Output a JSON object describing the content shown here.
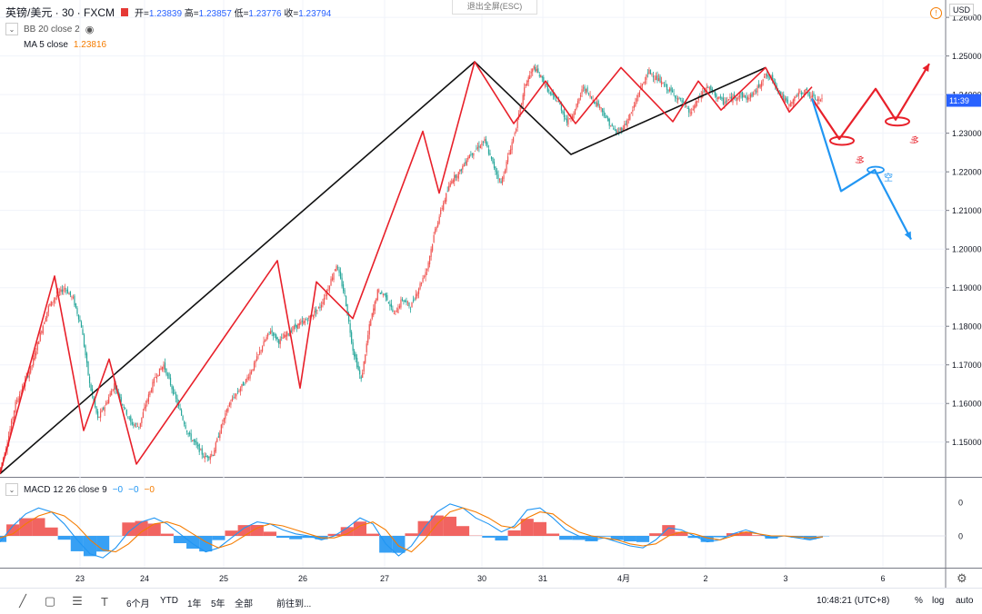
{
  "header": {
    "symbol": "英镑/美元 · 30 · FXCM",
    "open_label": "开=",
    "open": "1.23839",
    "high_label": "高=",
    "high": "1.23857",
    "low_label": "低=",
    "low": "1.23776",
    "close_label": "收=",
    "close": "1.23794",
    "indicator1": "BB 20 close 2",
    "indicator2_label": "MA 5 close",
    "indicator2_value": "1.23816",
    "exit_fullscreen": "退出全屏(ESC)",
    "currency": "USD",
    "macd_label": "MACD 12 26 close 9",
    "macd_v1": "−0",
    "macd_v2": "−0",
    "macd_v3": "−0"
  },
  "colors": {
    "up": "#ef5350",
    "down": "#26a69a",
    "price_line": "#2962ff",
    "zigzag_red": "#e8202a",
    "zigzag_black": "#111111",
    "bullish_arrow": "#e8202a",
    "bearish_arrow": "#2196f3",
    "macd_line": "#2196f3",
    "signal_line": "#f57c00",
    "hist_pos": "#ef5350",
    "hist_neg": "#2196f3"
  },
  "bottom_toolbar": {
    "timeframes": [
      "6个月",
      "YTD",
      "1年",
      "5年",
      "全部"
    ],
    "goto": "前往到...",
    "clock": "10:48:21 (UTC+8)",
    "percent": "%",
    "log": "log",
    "auto": "auto"
  },
  "chart_data": [
    {
      "type": "line",
      "series_style": "candlestick",
      "price_axis": {
        "ticks": [
          "1.26000",
          "1.25000",
          "1.24000",
          "1.23000",
          "1.22000",
          "1.21000",
          "1.20000",
          "1.19000",
          "1.18000",
          "1.17000",
          "1.16000",
          "1.15000"
        ],
        "ylim": [
          1.141,
          1.2645
        ]
      },
      "current_price_tag": "11:39",
      "time_axis": {
        "ticks": [
          "23",
          "24",
          "25",
          "26",
          "27",
          "30",
          "31",
          "4月",
          "2",
          "3",
          "6"
        ]
      },
      "price_path": {
        "description_x": "bar index 0..600",
        "x": [
          0,
          6,
          12,
          18,
          24,
          30,
          36,
          42,
          48,
          54,
          60,
          66,
          72,
          78,
          84,
          90,
          96,
          102,
          108,
          114,
          120,
          126,
          132,
          138,
          144,
          150,
          156,
          162,
          168,
          174,
          180,
          186,
          192,
          198,
          204,
          210,
          216,
          222,
          228,
          234,
          240,
          246,
          252,
          258,
          264,
          270,
          276,
          282,
          288,
          294,
          300,
          306,
          312,
          318,
          324,
          330,
          336,
          342,
          348,
          354,
          360,
          366,
          372,
          378,
          384,
          390,
          396,
          402,
          408,
          414,
          420,
          426,
          432,
          438,
          444,
          450,
          456,
          462,
          468,
          474,
          480,
          486,
          492,
          498,
          504,
          510,
          516,
          522,
          528,
          534,
          540,
          546,
          552,
          558,
          564,
          570,
          576,
          582,
          588,
          594,
          600
        ],
        "y": [
          1.142,
          1.15,
          1.16,
          1.165,
          1.17,
          1.178,
          1.185,
          1.188,
          1.19,
          1.187,
          1.18,
          1.165,
          1.156,
          1.16,
          1.165,
          1.16,
          1.155,
          1.154,
          1.161,
          1.167,
          1.17,
          1.164,
          1.158,
          1.152,
          1.149,
          1.146,
          1.147,
          1.154,
          1.16,
          1.163,
          1.166,
          1.17,
          1.175,
          1.179,
          1.176,
          1.178,
          1.18,
          1.181,
          1.183,
          1.185,
          1.19,
          1.196,
          1.188,
          1.174,
          1.166,
          1.18,
          1.189,
          1.188,
          1.183,
          1.187,
          1.185,
          1.19,
          1.195,
          1.205,
          1.212,
          1.218,
          1.22,
          1.224,
          1.226,
          1.228,
          1.222,
          1.217,
          1.225,
          1.233,
          1.243,
          1.247,
          1.244,
          1.24,
          1.238,
          1.233,
          1.236,
          1.242,
          1.239,
          1.237,
          1.233,
          1.23,
          1.232,
          1.236,
          1.242,
          1.246,
          1.244,
          1.242,
          1.24,
          1.238,
          1.235,
          1.239,
          1.242,
          1.24,
          1.238,
          1.239,
          1.24,
          1.239,
          1.241,
          1.245,
          1.244,
          1.24,
          1.237,
          1.24,
          1.241,
          1.239,
          1.2385
        ]
      },
      "zigzag_red": {
        "x": [
          0,
          60,
          92,
          120,
          150,
          305,
          330,
          348,
          388,
          465,
          483,
          522,
          565,
          600,
          633,
          683,
          740,
          768,
          793,
          842,
          868,
          893
        ],
        "y": [
          1.1418,
          1.193,
          1.153,
          1.1715,
          1.1443,
          1.197,
          1.164,
          1.1915,
          1.182,
          1.2305,
          1.2145,
          1.2485,
          1.2325,
          1.2435,
          1.2325,
          1.247,
          1.233,
          1.2435,
          1.236,
          1.247,
          1.2355,
          1.242
        ]
      },
      "zigzag_black": {
        "x": [
          0,
          522,
          628,
          842
        ],
        "y": [
          1.1418,
          1.2485,
          1.2245,
          1.247
        ]
      },
      "forecast_bullish": {
        "x": [
          893,
          923,
          963,
          985,
          1022
        ],
        "y": [
          1.239,
          1.2285,
          1.2415,
          1.2335,
          1.248
        ],
        "labels": [
          "多",
          "多"
        ]
      },
      "forecast_bearish": {
        "x": [
          893,
          925,
          962,
          1002
        ],
        "y": [
          1.239,
          1.215,
          1.2205,
          1.2025
        ],
        "labels": [
          "空"
        ]
      }
    },
    {
      "type": "area",
      "title": "MACD 12 26 close 9",
      "y_ticks": [
        "0",
        "0"
      ],
      "series": [
        {
          "name": "MACD",
          "values": [
            -0.3,
            0.5,
            1.1,
            1.4,
            1.2,
            0.6,
            -0.2,
            -0.9,
            -1.1,
            -0.6,
            0.2,
            0.7,
            0.9,
            0.6,
            0.1,
            -0.4,
            -0.8,
            -0.6,
            -0.1,
            0.4,
            0.7,
            0.6,
            0.3,
            0.1,
            0.0,
            -0.2,
            0.0,
            0.4,
            0.9,
            0.6,
            -0.4,
            -1.0,
            -0.5,
            0.4,
            1.2,
            1.6,
            1.4,
            0.9,
            0.6,
            0.2,
            0.5,
            1.3,
            1.4,
            0.9,
            0.3,
            0.0,
            -0.2,
            -0.1,
            -0.3,
            -0.5,
            -0.6,
            -0.2,
            0.4,
            0.3,
            0.0,
            -0.3,
            -0.2,
            0.1,
            0.3,
            0.1,
            -0.1,
            0.0,
            -0.1,
            -0.2,
            -0.05
          ]
        },
        {
          "name": "Signal",
          "values": [
            -0.1,
            0.1,
            0.6,
            1.0,
            1.2,
            1.0,
            0.5,
            -0.2,
            -0.7,
            -0.8,
            -0.4,
            0.2,
            0.6,
            0.7,
            0.5,
            0.1,
            -0.3,
            -0.6,
            -0.4,
            0.0,
            0.4,
            0.6,
            0.5,
            0.3,
            0.1,
            -0.1,
            -0.1,
            0.1,
            0.5,
            0.7,
            0.3,
            -0.5,
            -0.8,
            -0.2,
            0.6,
            1.2,
            1.4,
            1.2,
            0.9,
            0.5,
            0.4,
            0.9,
            1.2,
            1.1,
            0.6,
            0.2,
            0.0,
            -0.1,
            -0.2,
            -0.4,
            -0.5,
            -0.4,
            0.0,
            0.2,
            0.1,
            -0.1,
            -0.2,
            0.0,
            0.2,
            0.1,
            0.0,
            0.0,
            -0.05,
            -0.1,
            -0.05
          ]
        }
      ]
    }
  ]
}
